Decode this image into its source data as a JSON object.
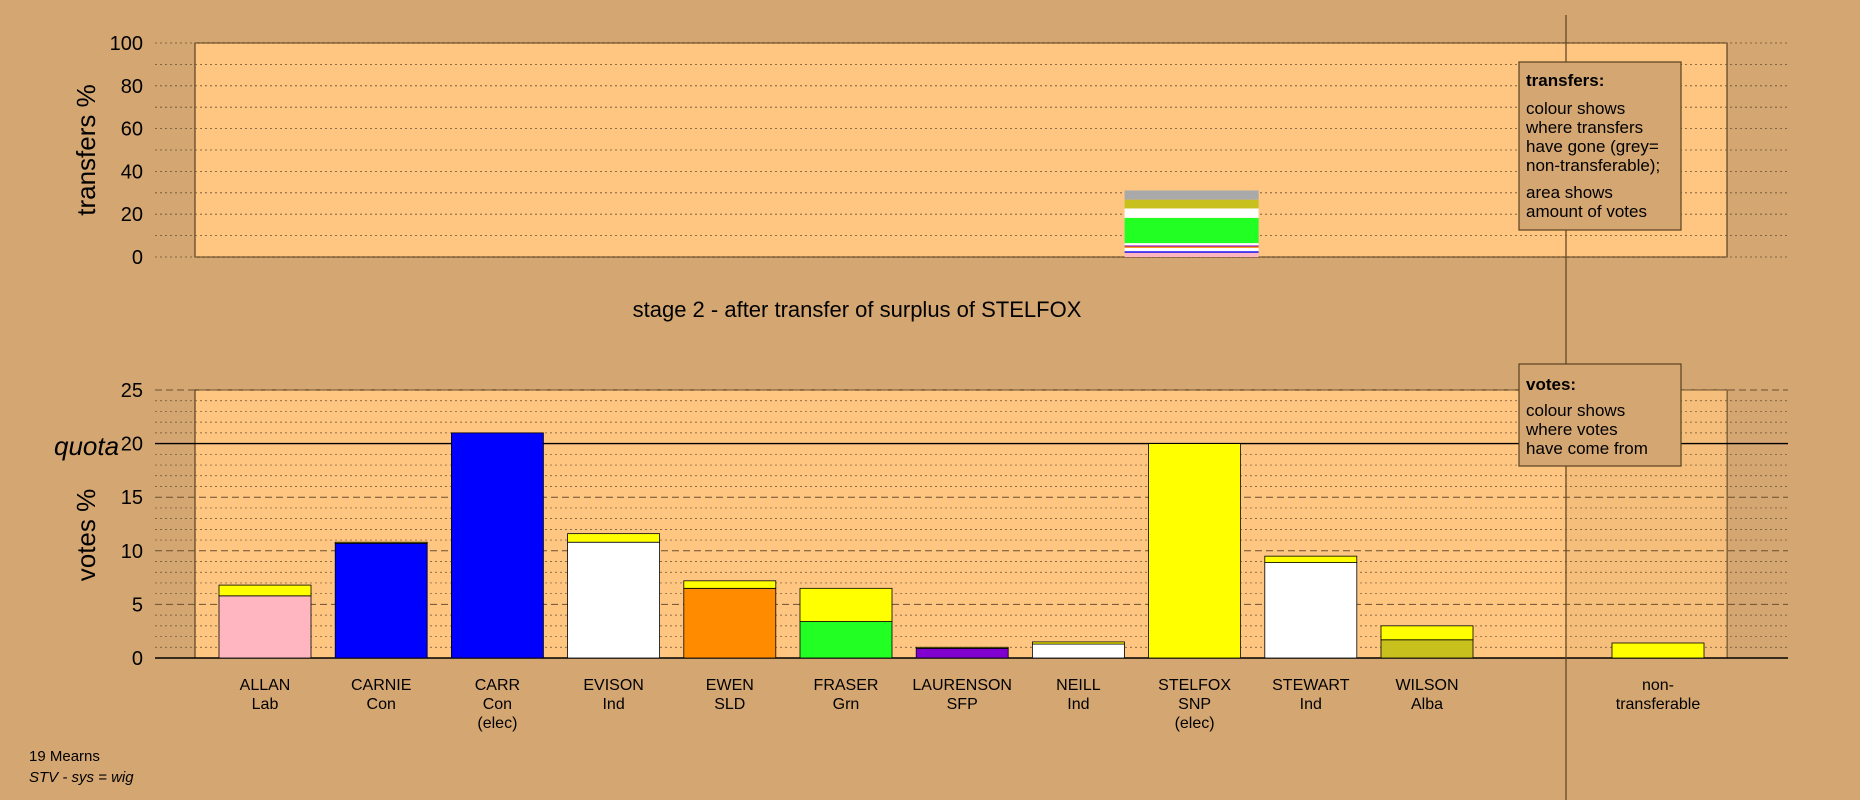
{
  "chart_data": [
    {
      "type": "bar",
      "panel": "transfers",
      "ylabel": "transfers %",
      "ylim": [
        0,
        100
      ],
      "yticks": [
        0,
        20,
        40,
        60,
        80,
        100
      ],
      "grid": "dotted",
      "stacked_bar": {
        "candidate": "STELFOX",
        "segments": [
          {
            "from": "ALLAN",
            "value": 2.0,
            "color": "#ffb6c1"
          },
          {
            "from": "CARR",
            "value": 0.7,
            "color": "#0000ff"
          },
          {
            "from": "EVISON",
            "value": 1.6,
            "color": "#ffffff"
          },
          {
            "from": "EWEN",
            "value": 0.6,
            "color": "#ff8c00"
          },
          {
            "from": "LAURENSON",
            "value": 0.5,
            "color": "#8000d0"
          },
          {
            "from": "NEILL",
            "value": 1.1,
            "color": "#ffffff"
          },
          {
            "from": "FRASER",
            "value": 11.8,
            "color": "#22ff22"
          },
          {
            "from": "STEWART",
            "value": 4.4,
            "color": "#ffffff"
          },
          {
            "from": "WILSON",
            "value": 4.1,
            "color": "#c8c01c"
          },
          {
            "from": "non-transferable",
            "value": 4.3,
            "color": "#a9a9a9"
          }
        ]
      }
    },
    {
      "type": "bar",
      "panel": "votes",
      "ylabel": "votes %",
      "ylim": [
        0,
        25
      ],
      "yticks": [
        0,
        5,
        10,
        15,
        20,
        25
      ],
      "quota": 20,
      "quota_label": "quota",
      "grid": "dotted",
      "candidates": [
        {
          "name": "ALLAN",
          "party": "Lab",
          "elec": "",
          "segments": [
            {
              "value": 5.8,
              "color": "#ffb6c1"
            },
            {
              "value": 1.0,
              "color": "#ffff00"
            }
          ]
        },
        {
          "name": "CARNIE",
          "party": "Con",
          "elec": "",
          "segments": [
            {
              "value": 10.7,
              "color": "#0000ff"
            },
            {
              "value": 0.1,
              "color": "#ffff00"
            }
          ]
        },
        {
          "name": "CARR",
          "party": "Con",
          "elec": "(elec)",
          "segments": [
            {
              "value": 21.0,
              "color": "#0000ff"
            }
          ]
        },
        {
          "name": "EVISON",
          "party": "Ind",
          "elec": "",
          "segments": [
            {
              "value": 10.8,
              "color": "#ffffff"
            },
            {
              "value": 0.8,
              "color": "#ffff00"
            }
          ]
        },
        {
          "name": "EWEN",
          "party": "SLD",
          "elec": "",
          "segments": [
            {
              "value": 6.5,
              "color": "#ff8c00"
            },
            {
              "value": 0.7,
              "color": "#ffff00"
            }
          ]
        },
        {
          "name": "FRASER",
          "party": "Grn",
          "elec": "",
          "segments": [
            {
              "value": 3.4,
              "color": "#22ff22"
            },
            {
              "value": 3.1,
              "color": "#ffff00"
            }
          ]
        },
        {
          "name": "LAURENSON",
          "party": "SFP",
          "elec": "",
          "segments": [
            {
              "value": 0.9,
              "color": "#8000d0"
            },
            {
              "value": 0.1,
              "color": "#ffff00"
            }
          ]
        },
        {
          "name": "NEILL",
          "party": "Ind",
          "elec": "",
          "segments": [
            {
              "value": 1.3,
              "color": "#ffffff"
            },
            {
              "value": 0.2,
              "color": "#ffff00"
            }
          ]
        },
        {
          "name": "STELFOX",
          "party": "SNP",
          "elec": "(elec)",
          "segments": [
            {
              "value": 20.0,
              "color": "#ffff00"
            }
          ]
        },
        {
          "name": "STEWART",
          "party": "Ind",
          "elec": "",
          "segments": [
            {
              "value": 8.9,
              "color": "#ffffff"
            },
            {
              "value": 0.6,
              "color": "#ffff00"
            }
          ]
        },
        {
          "name": "WILSON",
          "party": "Alba",
          "elec": "",
          "segments": [
            {
              "value": 1.7,
              "color": "#c8c01c"
            },
            {
              "value": 1.3,
              "color": "#ffff00"
            }
          ]
        }
      ],
      "nontransferable": {
        "name": "non-",
        "name2": "transferable",
        "segments": [
          {
            "value": 1.4,
            "color": "#ffff00"
          }
        ]
      }
    }
  ],
  "stage_title": "stage 2 - after transfer of surplus of STELFOX",
  "transfers_box": {
    "heading": "transfers:",
    "lines1": [
      "colour shows",
      "where transfers",
      "have gone (grey=",
      "non-transferable);"
    ],
    "lines2": [
      "area shows",
      "amount of votes"
    ]
  },
  "votes_box": {
    "heading": "votes:",
    "lines": [
      "colour shows",
      "where votes",
      "have come from"
    ]
  },
  "footer": {
    "ward": "19 Mearns",
    "system": "STV - sys = wig"
  },
  "colors": {
    "background": "#d4a672",
    "plot": "#ffc682",
    "border": "#5a4020"
  }
}
